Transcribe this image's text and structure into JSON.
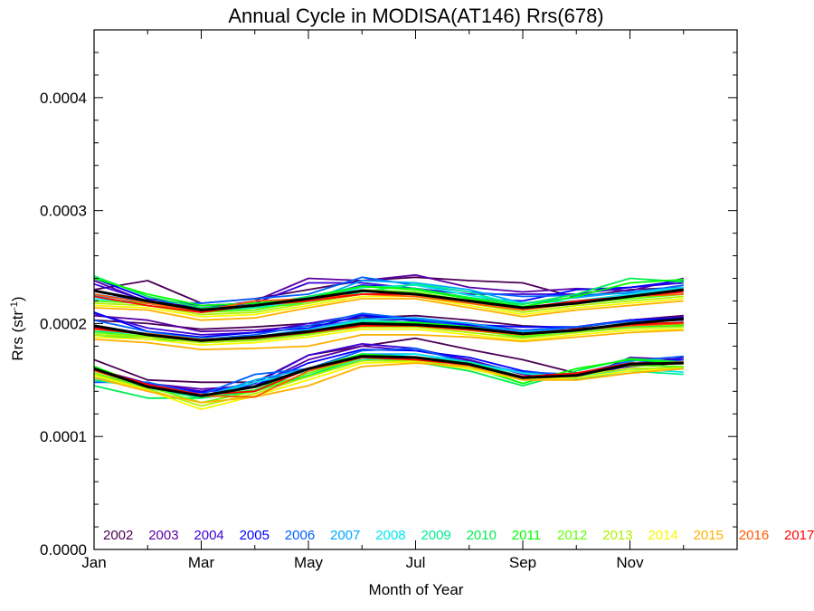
{
  "chart_data": {
    "type": "line",
    "title": "Annual Cycle in MODISA(AT146) Rrs(678)",
    "xlabel": "Month of Year",
    "ylabel_main": "Rrs (str",
    "ylabel_sup": "-1",
    "ylabel_close": ")",
    "xlim": [
      1,
      13
    ],
    "ylim": [
      0,
      0.00046
    ],
    "xticks": [
      {
        "value": 1,
        "label": "Jan"
      },
      {
        "value": 3,
        "label": "Mar"
      },
      {
        "value": 5,
        "label": "May"
      },
      {
        "value": 7,
        "label": "Jul"
      },
      {
        "value": 9,
        "label": "Sep"
      },
      {
        "value": 11,
        "label": "Nov"
      }
    ],
    "yticks": [
      {
        "value": 0,
        "label": "0.0000"
      },
      {
        "value": 0.0001,
        "label": "0.0001"
      },
      {
        "value": 0.0002,
        "label": "0.0002"
      },
      {
        "value": 0.0003,
        "label": "0.0003"
      },
      {
        "value": 0.0004,
        "label": "0.0004"
      }
    ],
    "months": [
      1,
      2,
      3,
      4,
      5,
      6,
      7,
      8,
      9,
      10,
      11,
      12
    ],
    "series": [
      {
        "name": "2002",
        "color": "#4b0055",
        "upper": [
          0.00023,
          0.000238,
          0.000218,
          0.000222,
          0.00023,
          0.000238,
          0.000241,
          0.000238,
          0.000236,
          0.000223,
          0.00023,
          0.000232
        ],
        "middle": [
          0.000203,
          0.0002,
          0.000195,
          0.000197,
          0.0002,
          0.000205,
          0.000207,
          0.000203,
          0.000198,
          0.000196,
          0.000203,
          0.000207
        ],
        "lower": [
          0.000168,
          0.00015,
          0.000148,
          0.000148,
          0.000172,
          0.00018,
          0.000187,
          0.000177,
          0.000168,
          0.000156,
          0.000162,
          0.000165
        ]
      },
      {
        "name": "2003",
        "color": "#5c00a3",
        "upper": [
          0.000238,
          0.000219,
          0.000213,
          0.00022,
          0.00024,
          0.000238,
          0.000243,
          0.000232,
          0.000228,
          0.000231,
          0.000229,
          0.00024
        ],
        "middle": [
          0.000207,
          0.000203,
          0.000193,
          0.000194,
          0.000198,
          0.000202,
          0.000204,
          0.0002,
          0.000194,
          0.000197,
          0.000203,
          0.000206
        ],
        "lower": [
          0.00016,
          0.000147,
          0.000142,
          0.000145,
          0.000168,
          0.00018,
          0.000176,
          0.000168,
          0.000155,
          0.00015,
          0.00017,
          0.000168
        ]
      },
      {
        "name": "2004",
        "color": "#3a00d6",
        "upper": [
          0.000235,
          0.00022,
          0.000214,
          0.000218,
          0.000236,
          0.000236,
          0.000231,
          0.000226,
          0.000226,
          0.000226,
          0.000232,
          0.000236
        ],
        "middle": [
          0.000209,
          0.000196,
          0.00019,
          0.000192,
          0.0002,
          0.000208,
          0.000202,
          0.000198,
          0.000193,
          0.000197,
          0.000203,
          0.000204
        ],
        "lower": [
          0.00016,
          0.000147,
          0.00014,
          0.000147,
          0.000172,
          0.000182,
          0.000178,
          0.000167,
          0.000156,
          0.000152,
          0.000163,
          0.00017
        ]
      },
      {
        "name": "2005",
        "color": "#0000ff",
        "upper": [
          0.00024,
          0.000222,
          0.000216,
          0.000218,
          0.000222,
          0.000234,
          0.000231,
          0.000222,
          0.00022,
          0.00023,
          0.000232,
          0.000238
        ],
        "middle": [
          0.00021,
          0.000193,
          0.000188,
          0.000192,
          0.000196,
          0.000207,
          0.000203,
          0.000199,
          0.000197,
          0.000197,
          0.000203,
          0.000205
        ],
        "lower": [
          0.000155,
          0.000145,
          0.000139,
          0.000145,
          0.000165,
          0.000177,
          0.000176,
          0.00017,
          0.000158,
          0.000153,
          0.000165,
          0.000168
        ]
      },
      {
        "name": "2006",
        "color": "#0060ff",
        "upper": [
          0.000226,
          0.000219,
          0.000218,
          0.000222,
          0.000226,
          0.000241,
          0.000234,
          0.000228,
          0.000224,
          0.000225,
          0.000227,
          0.000234
        ],
        "middle": [
          0.000203,
          0.000193,
          0.000186,
          0.00019,
          0.000198,
          0.000209,
          0.000204,
          0.000197,
          0.000194,
          0.000197,
          0.000202,
          0.000203
        ],
        "lower": [
          0.000148,
          0.000148,
          0.000137,
          0.000155,
          0.00016,
          0.000176,
          0.000178,
          0.000165,
          0.000157,
          0.000155,
          0.000167,
          0.000171
        ]
      },
      {
        "name": "2007",
        "color": "#00a8ff",
        "upper": [
          0.000225,
          0.000219,
          0.000212,
          0.000215,
          0.00022,
          0.000238,
          0.000236,
          0.00023,
          0.000218,
          0.000223,
          0.000228,
          0.000232
        ],
        "middle": [
          0.000197,
          0.000191,
          0.000187,
          0.000188,
          0.000195,
          0.000204,
          0.000205,
          0.0002,
          0.000193,
          0.000195,
          0.000198,
          0.0002
        ],
        "lower": [
          0.00015,
          0.000145,
          0.000135,
          0.00015,
          0.00016,
          0.000173,
          0.000173,
          0.000166,
          0.000156,
          0.000151,
          0.000166,
          0.00016
        ]
      },
      {
        "name": "2008",
        "color": "#00e8f0",
        "upper": [
          0.000222,
          0.000218,
          0.000212,
          0.000215,
          0.00022,
          0.000232,
          0.000234,
          0.000225,
          0.000218,
          0.00022,
          0.000226,
          0.000232
        ],
        "middle": [
          0.000195,
          0.00019,
          0.000185,
          0.000186,
          0.000193,
          0.000203,
          0.000201,
          0.000197,
          0.000191,
          0.000193,
          0.000197,
          0.000199
        ],
        "lower": [
          0.000152,
          0.000144,
          0.000134,
          0.000148,
          0.000158,
          0.00017,
          0.000173,
          0.000165,
          0.000156,
          0.000152,
          0.00016,
          0.000157
        ]
      },
      {
        "name": "2009",
        "color": "#00f090",
        "upper": [
          0.00022,
          0.000218,
          0.00021,
          0.000214,
          0.000218,
          0.000228,
          0.000235,
          0.000228,
          0.000215,
          0.000218,
          0.000222,
          0.000226
        ],
        "middle": [
          0.000193,
          0.000191,
          0.000185,
          0.000186,
          0.000193,
          0.000202,
          0.000201,
          0.000195,
          0.000191,
          0.000193,
          0.000197,
          0.000198
        ],
        "lower": [
          0.00015,
          0.000143,
          0.000134,
          0.000145,
          0.000153,
          0.000168,
          0.00017,
          0.000166,
          0.000153,
          0.000151,
          0.000158,
          0.000155
        ]
      },
      {
        "name": "2010",
        "color": "#00ee50",
        "upper": [
          0.000242,
          0.000224,
          0.000214,
          0.000216,
          0.000224,
          0.000233,
          0.000231,
          0.000223,
          0.000217,
          0.000226,
          0.00024,
          0.000237
        ],
        "middle": [
          0.00019,
          0.000186,
          0.000184,
          0.000186,
          0.00019,
          0.0002,
          0.000198,
          0.000195,
          0.000188,
          0.000192,
          0.000196,
          0.000198
        ],
        "lower": [
          0.000145,
          0.000134,
          0.000134,
          0.00014,
          0.000154,
          0.00017,
          0.000166,
          0.000158,
          0.000145,
          0.000158,
          0.000169,
          0.000166
        ]
      },
      {
        "name": "2011",
        "color": "#00ff00",
        "upper": [
          0.00024,
          0.000226,
          0.000216,
          0.000218,
          0.000222,
          0.000233,
          0.00023,
          0.000222,
          0.000215,
          0.000224,
          0.000236,
          0.000239
        ],
        "middle": [
          0.00019,
          0.000188,
          0.000186,
          0.000188,
          0.000191,
          0.0002,
          0.000201,
          0.000197,
          0.00019,
          0.000195,
          0.000199,
          0.000201
        ],
        "lower": [
          0.000162,
          0.000144,
          0.000136,
          0.000141,
          0.00016,
          0.000173,
          0.00017,
          0.000162,
          0.000147,
          0.00016,
          0.000168,
          0.000165
        ]
      },
      {
        "name": "2012",
        "color": "#60ff00",
        "upper": [
          0.00022,
          0.000218,
          0.00021,
          0.000212,
          0.00022,
          0.00023,
          0.000228,
          0.00022,
          0.000212,
          0.000218,
          0.000222,
          0.000226
        ],
        "middle": [
          0.000192,
          0.000189,
          0.000184,
          0.000187,
          0.000192,
          0.000199,
          0.000199,
          0.000194,
          0.000189,
          0.000194,
          0.000198,
          0.000199
        ],
        "lower": [
          0.000156,
          0.000144,
          0.00013,
          0.00014,
          0.000156,
          0.00017,
          0.000168,
          0.00016,
          0.00015,
          0.000156,
          0.000163,
          0.000162
        ]
      },
      {
        "name": "2013",
        "color": "#b0f000",
        "upper": [
          0.000218,
          0.000216,
          0.000208,
          0.00021,
          0.000218,
          0.000226,
          0.000226,
          0.000218,
          0.00021,
          0.000216,
          0.00022,
          0.000224
        ],
        "middle": [
          0.00019,
          0.000188,
          0.000183,
          0.000185,
          0.00019,
          0.000197,
          0.000197,
          0.000192,
          0.000187,
          0.000192,
          0.000196,
          0.000197
        ],
        "lower": [
          0.000155,
          0.000142,
          0.000127,
          0.000138,
          0.000153,
          0.000167,
          0.000167,
          0.00016,
          0.00015,
          0.000154,
          0.00016,
          0.000161
        ]
      },
      {
        "name": "2014",
        "color": "#f8f800",
        "upper": [
          0.000216,
          0.000214,
          0.000206,
          0.000208,
          0.000216,
          0.000224,
          0.000224,
          0.000216,
          0.000208,
          0.000214,
          0.000218,
          0.000222
        ],
        "middle": [
          0.000188,
          0.000186,
          0.000181,
          0.000183,
          0.000188,
          0.000195,
          0.000195,
          0.00019,
          0.000185,
          0.00019,
          0.000194,
          0.000195
        ],
        "lower": [
          0.000154,
          0.000141,
          0.000124,
          0.000136,
          0.00015,
          0.000165,
          0.000166,
          0.00016,
          0.00015,
          0.000152,
          0.000158,
          0.00016
        ]
      },
      {
        "name": "2015",
        "color": "#ffb000",
        "upper": [
          0.000214,
          0.000212,
          0.000203,
          0.000205,
          0.000214,
          0.000222,
          0.000222,
          0.000214,
          0.000206,
          0.000212,
          0.000216,
          0.00022
        ],
        "middle": [
          0.000186,
          0.000183,
          0.000177,
          0.000178,
          0.00018,
          0.00019,
          0.00019,
          0.000188,
          0.000184,
          0.000188,
          0.000192,
          0.000194
        ],
        "lower": [
          0.000152,
          0.00014,
          0.00013,
          0.000135,
          0.000145,
          0.000162,
          0.000165,
          0.000162,
          0.00015,
          0.00015,
          0.000156,
          0.00016
        ]
      },
      {
        "name": "2016",
        "color": "#ff5a00",
        "upper": [
          0.000226,
          0.000218,
          0.000211,
          0.00022,
          0.000222,
          0.000226,
          0.000224,
          0.000218,
          0.000212,
          0.000218,
          0.000224,
          0.000226
        ],
        "middle": [
          0.000195,
          0.000191,
          0.000186,
          0.000188,
          0.000192,
          0.000198,
          0.000198,
          0.000194,
          0.00019,
          0.000194,
          0.000198,
          0.0002
        ],
        "lower": [
          0.000158,
          0.000145,
          0.000136,
          0.000135,
          0.000158,
          0.00017,
          0.000168,
          0.000163,
          0.000153,
          0.000156,
          0.000164,
          0.000166
        ]
      },
      {
        "name": "2017",
        "color": "#ff0000",
        "upper": [
          0.000224,
          0.000216,
          0.00021,
          0.000216,
          0.00022,
          0.000226,
          0.000226,
          0.00022,
          0.000214,
          0.00022,
          0.000224,
          0.000228
        ],
        "middle": [
          0.000196,
          0.00019,
          0.000185,
          0.000187,
          0.000192,
          0.000198,
          0.000198,
          0.000195,
          0.000191,
          0.000195,
          0.000199,
          0.000201
        ],
        "lower": [
          0.00016,
          0.000146,
          0.000137,
          0.00014,
          0.00016,
          0.00017,
          0.000168,
          0.000164,
          0.000153,
          0.000156,
          0.000165,
          0.000165
        ]
      }
    ],
    "climatology": {
      "color": "#000000",
      "upper": [
        0.000229,
        0.00022,
        0.000212,
        0.000216,
        0.000222,
        0.000229,
        0.000226,
        0.00022,
        0.000214,
        0.000218,
        0.000224,
        0.00023
      ],
      "middle": [
        0.000198,
        0.00019,
        0.000185,
        0.000188,
        0.000193,
        0.0002,
        0.000199,
        0.000196,
        0.000191,
        0.000194,
        0.0002,
        0.000204
      ],
      "lower": [
        0.00016,
        0.000144,
        0.000136,
        0.000144,
        0.00016,
        0.000171,
        0.00017,
        0.000164,
        0.000152,
        0.000154,
        0.000164,
        0.000165
      ]
    },
    "grid": false,
    "legend_placement": "bottom inside plot, single row"
  }
}
